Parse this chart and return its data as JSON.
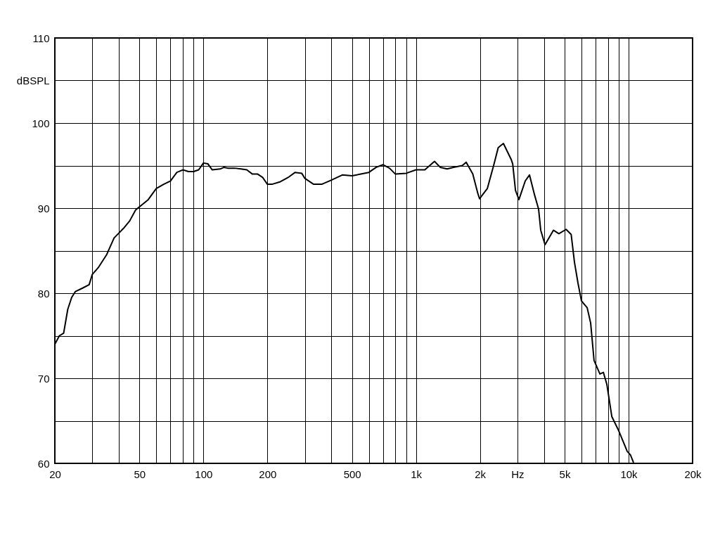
{
  "chart_data": {
    "type": "line",
    "log": "x",
    "grid": true,
    "line_style": "solid",
    "marker": "none",
    "xlim": [
      20,
      20000
    ],
    "ylim": [
      60,
      110
    ],
    "xticks": [
      20,
      {
        "value": 30,
        "label": null
      },
      {
        "value": 40,
        "label": null
      },
      50,
      {
        "value": 60,
        "label": null
      },
      {
        "value": 70,
        "label": null
      },
      {
        "value": 80,
        "label": null
      },
      {
        "value": 90,
        "label": null
      },
      100,
      200,
      {
        "value": 300,
        "label": null
      },
      {
        "value": 400,
        "label": null
      },
      500,
      {
        "value": 600,
        "label": null
      },
      {
        "value": 700,
        "label": null
      },
      {
        "value": 800,
        "label": null
      },
      {
        "value": 900,
        "label": null
      },
      {
        "value": 1000,
        "label": "1k"
      },
      {
        "value": 2000,
        "label": "2k"
      },
      {
        "value": 3000,
        "label": "Hz"
      },
      {
        "value": 4000,
        "label": null
      },
      {
        "value": 5000,
        "label": "5k"
      },
      {
        "value": 6000,
        "label": null
      },
      {
        "value": 7000,
        "label": null
      },
      {
        "value": 8000,
        "label": null
      },
      {
        "value": 9000,
        "label": null
      },
      {
        "value": 10000,
        "label": "10k"
      },
      {
        "value": 20000,
        "label": "20k"
      }
    ],
    "yticks": [
      60,
      {
        "value": 65,
        "label": null
      },
      70,
      {
        "value": 75,
        "label": null
      },
      80,
      {
        "value": 85,
        "label": null
      },
      90,
      {
        "value": 95,
        "label": null
      },
      100,
      {
        "value": 105,
        "label": "dBSPL"
      },
      110
    ],
    "series": [
      {
        "color": "#000000",
        "x": [
          20,
          21,
          22,
          23,
          24,
          25,
          27,
          29,
          30,
          32,
          35,
          38,
          42,
          45,
          48,
          52,
          55,
          60,
          65,
          70,
          75,
          80,
          85,
          90,
          95,
          100,
          105,
          110,
          120,
          125,
          130,
          140,
          150,
          160,
          170,
          180,
          190,
          200,
          210,
          230,
          250,
          270,
          290,
          300,
          330,
          360,
          400,
          450,
          500,
          550,
          600,
          650,
          700,
          750,
          800,
          900,
          1000,
          1100,
          1222,
          1300,
          1400,
          1500,
          1650,
          1722,
          1850,
          1950,
          1991,
          2165,
          2318,
          2436,
          2577,
          2806,
          2850,
          2937,
          3049,
          3266,
          3419,
          3607,
          3772,
          3861,
          4045,
          4430,
          4700,
          5083,
          5370,
          5567,
          5780,
          6000,
          6384,
          6630,
          6880,
          7330,
          7610,
          7900,
          8340,
          9000,
          9860,
          10200,
          10550
        ],
        "values": [
          74.0,
          75.0,
          75.3,
          78.1,
          79.5,
          80.2,
          80.6,
          81.0,
          82.2,
          83.0,
          84.5,
          86.5,
          87.6,
          88.5,
          89.8,
          90.5,
          91.0,
          92.3,
          92.8,
          93.2,
          94.2,
          94.5,
          94.3,
          94.3,
          94.5,
          95.3,
          95.2,
          94.5,
          94.6,
          94.8,
          94.7,
          94.7,
          94.6,
          94.5,
          94.0,
          94.0,
          93.6,
          92.8,
          92.8,
          93.1,
          93.6,
          94.2,
          94.1,
          93.5,
          92.8,
          92.8,
          93.3,
          93.9,
          93.8,
          94.0,
          94.2,
          94.8,
          95.1,
          94.7,
          94.0,
          94.1,
          94.5,
          94.5,
          95.5,
          94.8,
          94.6,
          94.8,
          95.0,
          95.4,
          94.0,
          91.8,
          91.1,
          92.3,
          95.0,
          97.1,
          97.6,
          95.7,
          95.2,
          92.1,
          91.0,
          93.2,
          93.9,
          91.6,
          89.9,
          87.4,
          85.7,
          87.4,
          87.0,
          87.5,
          86.9,
          83.6,
          81.2,
          79.1,
          78.3,
          76.5,
          72.1,
          70.5,
          70.7,
          69.3,
          65.5,
          63.8,
          61.4,
          61.0,
          60.1
        ]
      }
    ]
  }
}
